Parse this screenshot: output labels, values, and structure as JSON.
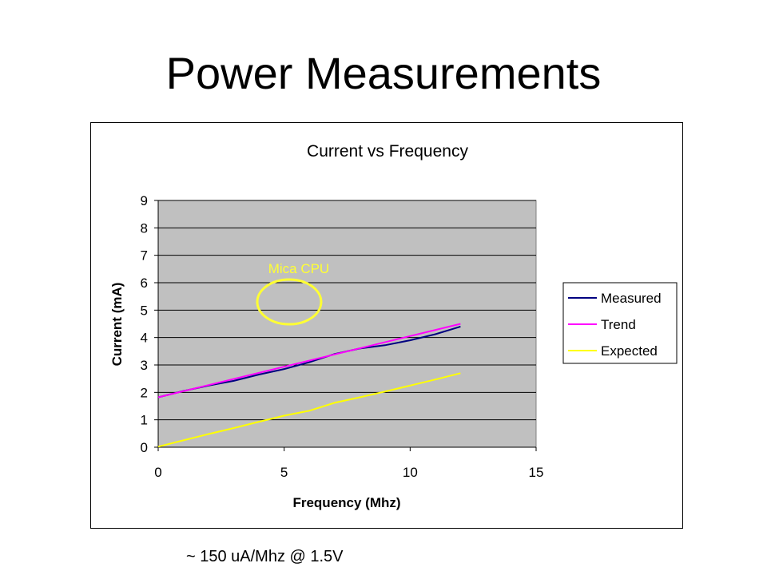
{
  "slide": {
    "title": "Power Measurements",
    "footnote": "~ 150 uA/Mhz @ 1.5V"
  },
  "annotation": {
    "label": "Mica CPU",
    "color": "#FFFF33",
    "circle_center": [
      5.2,
      5.3
    ]
  },
  "chart_data": {
    "type": "line",
    "title": "Current vs Frequency",
    "xlabel": "Frequency (Mhz)",
    "ylabel": "Current (mA)",
    "xlim": [
      0,
      15
    ],
    "ylim": [
      0,
      9
    ],
    "x_ticks": [
      0,
      5,
      10,
      15
    ],
    "y_ticks": [
      0,
      1,
      2,
      3,
      4,
      5,
      6,
      7,
      8,
      9
    ],
    "grid": true,
    "plot_background": "#C0C0C0",
    "legend_position": "right",
    "series": [
      {
        "name": "Measured",
        "color": "#000080",
        "x": [
          0,
          1,
          2,
          3,
          4,
          5,
          6,
          7,
          8,
          9,
          10,
          11,
          12
        ],
        "y": [
          1.82,
          2.05,
          2.25,
          2.42,
          2.65,
          2.85,
          3.1,
          3.4,
          3.6,
          3.72,
          3.9,
          4.12,
          4.4
        ]
      },
      {
        "name": "Trend",
        "color": "#FF00FF",
        "x": [
          0,
          12
        ],
        "y": [
          1.82,
          4.5
        ]
      },
      {
        "name": "Expected",
        "color": "#FFFF00",
        "x": [
          0,
          1,
          2,
          3,
          4,
          5,
          6,
          7,
          8,
          9,
          10,
          11,
          12
        ],
        "y": [
          0.02,
          0.25,
          0.48,
          0.7,
          0.93,
          1.15,
          1.33,
          1.62,
          1.82,
          2.03,
          2.25,
          2.47,
          2.7
        ]
      }
    ]
  }
}
